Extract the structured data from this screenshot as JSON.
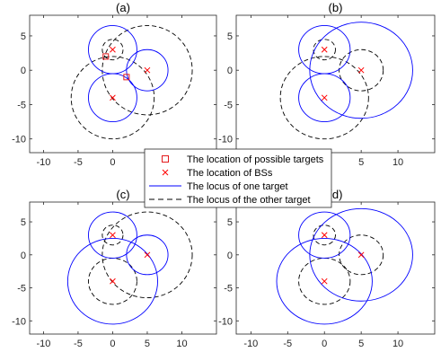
{
  "colors": {
    "bs": "#ff0000",
    "target": "#e41a1c",
    "locus_one": "#0000ff",
    "locus_other": "#000000",
    "axis": "#262626"
  },
  "legend": {
    "entries": [
      {
        "marker": "square",
        "label": "The location of possible targets"
      },
      {
        "marker": "x",
        "label": "The location of BSs"
      },
      {
        "marker": "solid-line",
        "label": "The locus of one target"
      },
      {
        "marker": "dashed-line",
        "label": "The locus of the other target"
      }
    ]
  },
  "chart_data": [
    {
      "type": "scatter",
      "title": "(a)",
      "xlim": [
        -12,
        15
      ],
      "ylim": [
        -12,
        8
      ],
      "xticks": [
        -10,
        -5,
        0,
        5,
        10
      ],
      "yticks": [
        -10,
        -5,
        0,
        5
      ],
      "bs": [
        [
          0,
          3
        ],
        [
          5,
          0
        ],
        [
          0,
          -4
        ]
      ],
      "targets": [
        [
          -1,
          2
        ],
        [
          2,
          -1
        ]
      ],
      "locus_one": [
        {
          "cx": 0,
          "cy": 3,
          "r": 3.5
        },
        {
          "cx": 5,
          "cy": 0,
          "r": 3.0
        },
        {
          "cx": 0,
          "cy": -4,
          "r": 3.5
        }
      ],
      "locus_other": [
        {
          "cx": 0,
          "cy": 3,
          "r": 1.5
        },
        {
          "cx": 5,
          "cy": 0,
          "r": 6.5
        },
        {
          "cx": 0,
          "cy": -4,
          "r": 6.0
        }
      ]
    },
    {
      "type": "scatter",
      "title": "(b)",
      "xlim": [
        -12,
        15
      ],
      "ylim": [
        -12,
        8
      ],
      "xticks": [
        -10,
        -5,
        0,
        5,
        10
      ],
      "yticks": [
        -10,
        -5,
        0,
        5
      ],
      "bs": [
        [
          0,
          3
        ],
        [
          5,
          0
        ],
        [
          0,
          -4
        ]
      ],
      "targets": [],
      "locus_one": [
        {
          "cx": 0,
          "cy": 3,
          "r": 3.5
        },
        {
          "cx": 5,
          "cy": 0,
          "r": 7.0
        },
        {
          "cx": 0,
          "cy": -4,
          "r": 3.5
        }
      ],
      "locus_other": [
        {
          "cx": 0,
          "cy": 3,
          "r": 1.5
        },
        {
          "cx": 5,
          "cy": 0,
          "r": 3.0
        },
        {
          "cx": 0,
          "cy": -4,
          "r": 6.0
        }
      ]
    },
    {
      "type": "scatter",
      "title": "(c)",
      "xlim": [
        -12,
        15
      ],
      "ylim": [
        -12,
        8
      ],
      "xticks": [
        -10,
        -5,
        0,
        5,
        10
      ],
      "yticks": [
        -10,
        -5,
        0,
        5
      ],
      "bs": [
        [
          0,
          3
        ],
        [
          5,
          0
        ],
        [
          0,
          -4
        ]
      ],
      "targets": [],
      "locus_one": [
        {
          "cx": 0,
          "cy": 3,
          "r": 3.5
        },
        {
          "cx": 5,
          "cy": 0,
          "r": 3.0
        },
        {
          "cx": 0,
          "cy": -4,
          "r": 6.5
        }
      ],
      "locus_other": [
        {
          "cx": 0,
          "cy": 3,
          "r": 1.5
        },
        {
          "cx": 5,
          "cy": 0,
          "r": 6.5
        },
        {
          "cx": 0,
          "cy": -4,
          "r": 3.5
        }
      ]
    },
    {
      "type": "scatter",
      "title": "(d)",
      "xlim": [
        -12,
        15
      ],
      "ylim": [
        -12,
        8
      ],
      "xticks": [
        -10,
        -5,
        0,
        5,
        10
      ],
      "yticks": [
        -10,
        -5,
        0,
        5
      ],
      "bs": [
        [
          0,
          3
        ],
        [
          5,
          0
        ],
        [
          0,
          -4
        ]
      ],
      "targets": [],
      "locus_one": [
        {
          "cx": 0,
          "cy": 3,
          "r": 3.5
        },
        {
          "cx": 5,
          "cy": 0,
          "r": 7.0
        },
        {
          "cx": 0,
          "cy": -4,
          "r": 6.5
        }
      ],
      "locus_other": [
        {
          "cx": 0,
          "cy": 3,
          "r": 1.5
        },
        {
          "cx": 5,
          "cy": 0,
          "r": 3.0
        },
        {
          "cx": 0,
          "cy": -4,
          "r": 3.5
        }
      ]
    }
  ]
}
